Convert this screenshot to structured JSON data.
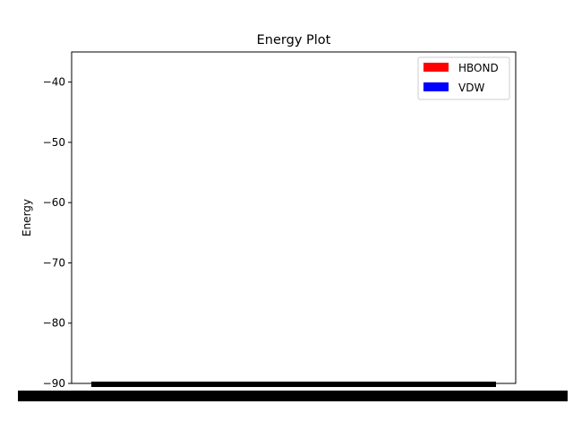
{
  "chart_data": {
    "type": "bar",
    "title": "Energy Plot",
    "xlabel": "",
    "ylabel": "Energy",
    "ylim": [
      -90,
      -35
    ],
    "yticks": [
      -40,
      -50,
      -60,
      -70,
      -80,
      -90
    ],
    "ytick_labels": [
      "−40",
      "−50",
      "−60",
      "−70",
      "−80",
      "−90"
    ],
    "grid": false,
    "legend_position": "top-right",
    "series": [
      {
        "name": "HBOND",
        "color": "#ff0000",
        "values": []
      },
      {
        "name": "VDW",
        "color": "#0000ff",
        "values": []
      }
    ]
  }
}
